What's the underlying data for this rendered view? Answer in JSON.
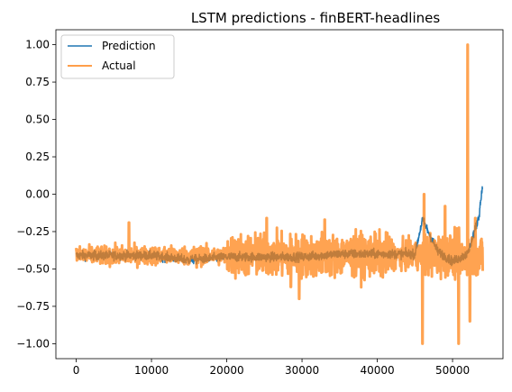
{
  "chart_data": {
    "type": "line",
    "title": "LSTM predictions - finBERT-headlines",
    "xlabel": "",
    "ylabel": "",
    "xlim": [
      -2700,
      56700
    ],
    "ylim": [
      -1.1,
      1.1
    ],
    "xticks": [
      0,
      10000,
      20000,
      30000,
      40000,
      50000
    ],
    "xtick_labels": [
      "0",
      "10000",
      "20000",
      "30000",
      "40000",
      "50000"
    ],
    "yticks": [
      -1.0,
      -0.75,
      -0.5,
      -0.25,
      0.0,
      0.25,
      0.5,
      0.75,
      1.0
    ],
    "ytick_labels": [
      "−1.00",
      "−0.75",
      "−0.50",
      "−0.25",
      "0.00",
      "0.25",
      "0.50",
      "0.75",
      "1.00"
    ],
    "grid": false,
    "legend_position": "upper-left",
    "series": [
      {
        "name": "Prediction",
        "color": "#1f77b4",
        "x_range": [
          0,
          54000
        ],
        "approx_values_by_x": [
          [
            0,
            -0.41
          ],
          [
            10000,
            -0.41
          ],
          [
            15000,
            -0.44
          ],
          [
            20000,
            -0.42
          ],
          [
            25000,
            -0.42
          ],
          [
            30000,
            -0.42
          ],
          [
            35000,
            -0.4
          ],
          [
            40000,
            -0.4
          ],
          [
            45000,
            -0.4
          ],
          [
            46000,
            -0.17
          ],
          [
            48000,
            -0.38
          ],
          [
            50000,
            -0.45
          ],
          [
            52000,
            -0.4
          ],
          [
            53500,
            -0.15
          ],
          [
            54000,
            0.07
          ]
        ]
      },
      {
        "name": "Actual",
        "color": "#ff7f0e",
        "x_range": [
          0,
          54000
        ],
        "notable_values": [
          [
            7000,
            -0.19
          ],
          [
            16000,
            -0.49
          ],
          [
            25300,
            -0.16
          ],
          [
            28500,
            -0.62
          ],
          [
            29600,
            -0.7
          ],
          [
            30000,
            -0.54
          ],
          [
            31500,
            -0.55
          ],
          [
            33000,
            -0.17
          ],
          [
            46000,
            -1.0
          ],
          [
            46200,
            0.0
          ],
          [
            49000,
            -0.08
          ],
          [
            50800,
            -1.0
          ],
          [
            52000,
            1.0
          ],
          [
            52300,
            -0.85
          ],
          [
            53000,
            -0.16
          ]
        ]
      }
    ]
  }
}
